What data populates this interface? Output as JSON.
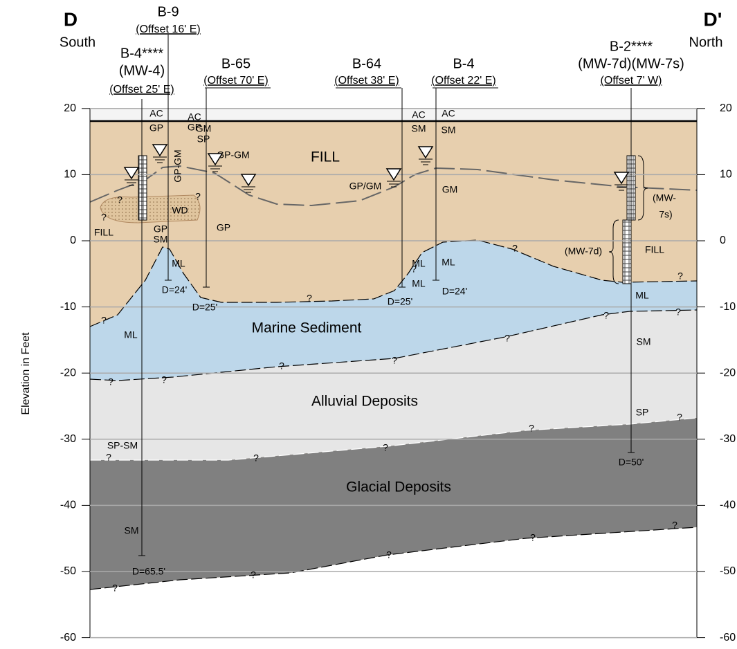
{
  "header": {
    "left": {
      "letter": "D",
      "direction": "South"
    },
    "right": {
      "letter": "D'",
      "direction": "North"
    }
  },
  "borings": [
    {
      "name": "B-9",
      "offset": "(Offset 16' E)"
    },
    {
      "name": "B-4****",
      "well": "(MW-4)",
      "offset": "(Offset 25' E)"
    },
    {
      "name": "B-65",
      "offset": "(Offset 70' E)"
    },
    {
      "name": "B-64",
      "offset": "(Offset 38' E)"
    },
    {
      "name": "B-4",
      "offset": "(Offset 22' E)"
    },
    {
      "name": "B-2****",
      "well": "(MW-7d)(MW-7s)",
      "offset": "(Offset 7' W)"
    }
  ],
  "axis": {
    "label": "Elevation in Feet",
    "ticks": [
      20,
      10,
      0,
      -10,
      -20,
      -30,
      -40,
      -50,
      -60
    ]
  },
  "units": [
    "FILL",
    "Marine Sediment",
    "Alluvial Deposits",
    "Glacial Deposits"
  ],
  "annotations": [
    "AC",
    "GP",
    "AC",
    "GP",
    "GM",
    "SP",
    "GP-GM",
    "GP-GM",
    "AC",
    "SM",
    "AC",
    "SM",
    "GP/GM",
    "GM",
    "WD",
    "FILL",
    "GP",
    "SM",
    "GP",
    "ML",
    "D=24'",
    "D=25'",
    "ML",
    "ML",
    "ML",
    "ML",
    "D=25'",
    "D=24'",
    "(MW-7d)",
    "FILL",
    "(MW-",
    "7s)",
    "ML",
    "SM",
    "SP",
    "D=50'",
    "SP-SM",
    "SM",
    "D=65.5'"
  ],
  "uncertain_marker": "?"
}
